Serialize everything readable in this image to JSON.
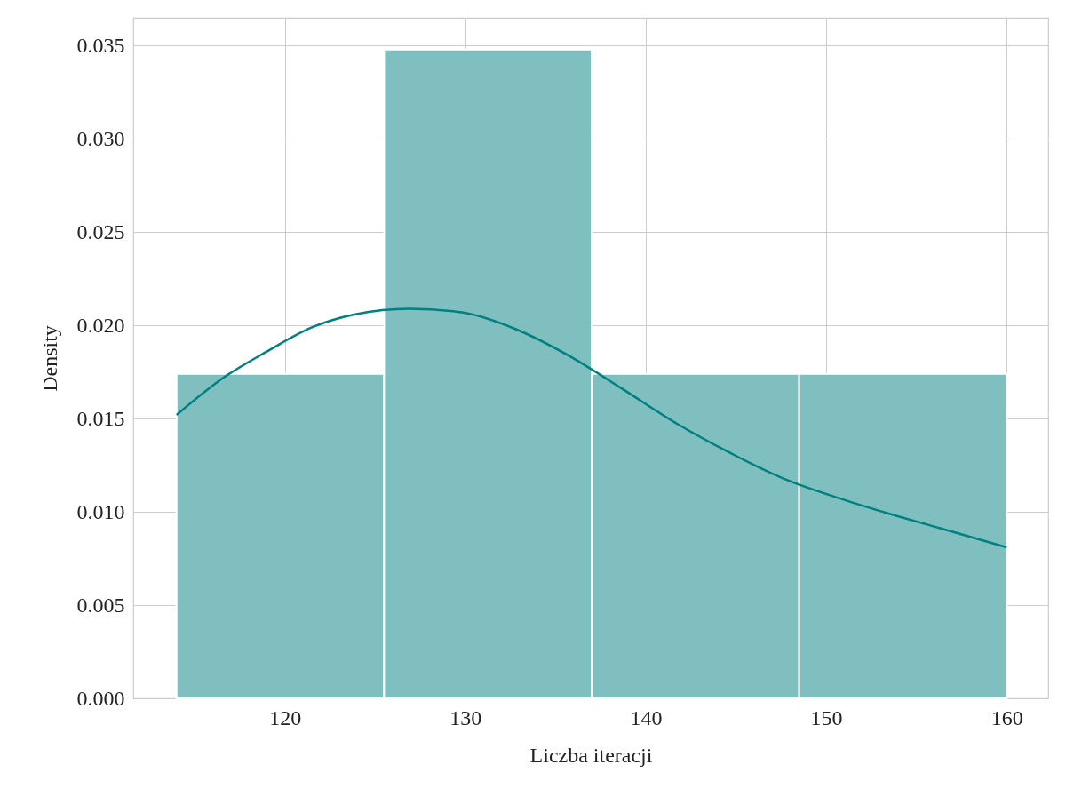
{
  "chart_data": {
    "type": "histogram",
    "xlabel": "Liczba iteracji",
    "ylabel": "Density",
    "bins": [
      114,
      125.5,
      137,
      148.5,
      160
    ],
    "values": [
      0.0174,
      0.0348,
      0.0174,
      0.0174
    ],
    "color": "#80bfbf",
    "series": [
      {
        "type": "line",
        "color": "#008080",
        "x": [
          114,
          116.6,
          119,
          121.5,
          123.9,
          126.9,
          129.8,
          132.8,
          135.7,
          138.7,
          141.6,
          144.6,
          147.6,
          150.5,
          153.5,
          156.4,
          160
        ],
        "values": [
          0.0152,
          0.0172,
          0.0186,
          0.0199,
          0.0206,
          0.0209,
          0.0207,
          0.0198,
          0.0184,
          0.0166,
          0.0148,
          0.0132,
          0.0118,
          0.0108,
          0.0099,
          0.0091,
          0.0081
        ]
      }
    ],
    "xlim": [
      111.6,
      162.3
    ],
    "xticks": [
      120,
      130,
      140,
      150,
      160
    ],
    "ylim": [
      0,
      0.0365
    ],
    "yticks": [
      {
        "value": 0,
        "label": "0.000"
      },
      0.005,
      {
        "value": 0.01,
        "label": "0.010"
      },
      0.015,
      {
        "value": 0.02,
        "label": "0.020"
      },
      0.025,
      {
        "value": 0.03,
        "label": "0.030"
      },
      0.035
    ],
    "grid": true
  }
}
